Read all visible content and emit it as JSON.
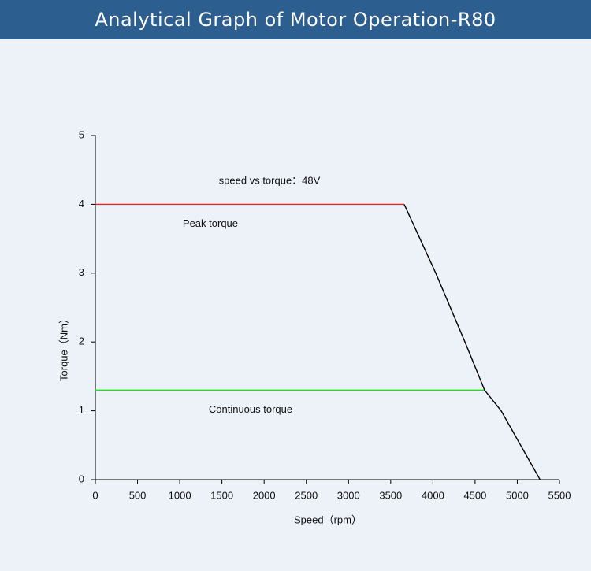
{
  "header": {
    "title": "Analytical Graph of Motor Operation-R80"
  },
  "chart_data": {
    "type": "line",
    "annotation": "speed vs torque：48V",
    "x_label": "Speed（rpm）",
    "y_label": "Torque（Nm）",
    "xlim": [
      0,
      5500
    ],
    "xticks": [
      0,
      500,
      1000,
      1500,
      2000,
      2500,
      3000,
      3500,
      4000,
      4500,
      5000,
      5500
    ],
    "ylim": [
      0,
      5
    ],
    "yticks": [
      0,
      1,
      2,
      3,
      4,
      5
    ],
    "series": [
      {
        "name": "Peak torque",
        "color": "#e0262a",
        "x": [
          0,
          3660
        ],
        "values": [
          4,
          4
        ]
      },
      {
        "name": "Continuous torque",
        "color": "#22dd22",
        "x": [
          0,
          4613
        ],
        "values": [
          1.3,
          1.3
        ]
      },
      {
        "color": "#000000",
        "x": [
          3660,
          4034,
          4380,
          4613,
          4809,
          5270
        ],
        "values": [
          4,
          3,
          2,
          1.3,
          1,
          0
        ]
      }
    ]
  }
}
